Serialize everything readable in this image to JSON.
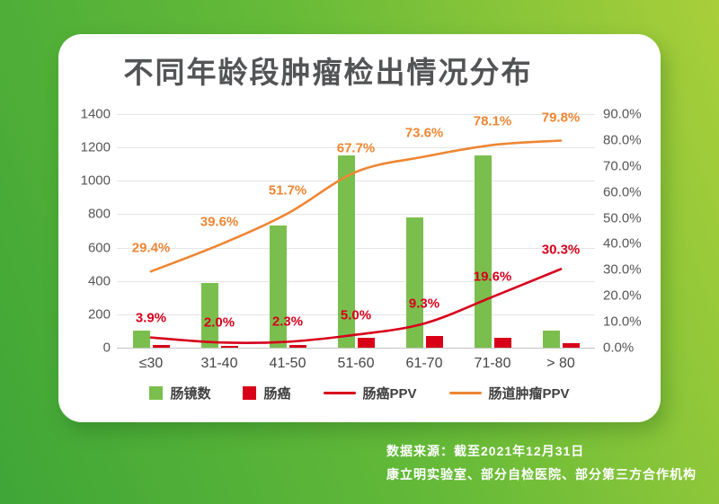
{
  "title": "不同年龄段肿瘤检出情况分布",
  "source": {
    "line1": "数据来源：截至2021年12月31日",
    "line2": "康立明实验室、部分自检医院、部分第三方合作机构"
  },
  "colors": {
    "green_bar": "#7abf4e",
    "red_bar": "#d80018",
    "red_line": "#d7001c",
    "orange_line": "#ee8633",
    "title_text": "#535456",
    "axis_text": "#565656",
    "background_light": "#a9cf3a",
    "background_dark": "#3fa637",
    "card": "#ffffff"
  },
  "chart_data": {
    "type": "bar",
    "subtype": "combo-bar-line-dual-axis",
    "title": "不同年龄段肿瘤检出情况分布",
    "categories": [
      "≤30",
      "31-40",
      "41-50",
      "51-60",
      "61-70",
      "71-80",
      "> 80"
    ],
    "series": [
      {
        "name": "肠镜数",
        "type": "bar",
        "axis": "left",
        "color": "#7abf4e",
        "values": [
          100,
          390,
          730,
          1150,
          780,
          1155,
          105
        ]
      },
      {
        "name": "肠癌",
        "type": "bar",
        "axis": "left",
        "color": "#d80018",
        "values": [
          18,
          12,
          15,
          60,
          70,
          62,
          28
        ]
      },
      {
        "name": "肠癌PPV",
        "type": "line",
        "axis": "right",
        "color": "#d7001c",
        "values": [
          3.9,
          2.0,
          2.3,
          5.0,
          9.3,
          19.6,
          30.3
        ],
        "labels": [
          "3.9%",
          "2.0%",
          "2.3%",
          "5.0%",
          "9.3%",
          "19.6%",
          "30.3%"
        ]
      },
      {
        "name": "肠道肿瘤PPV",
        "type": "line",
        "axis": "right",
        "color": "#ee8633",
        "values": [
          29.4,
          39.6,
          51.7,
          67.7,
          73.6,
          78.1,
          79.8
        ],
        "labels": [
          "29.4%",
          "39.6%",
          "51.7%",
          "67.7%",
          "73.6%",
          "78.1%",
          "79.8%"
        ]
      }
    ],
    "left_axis": {
      "min": 0,
      "max": 1400,
      "step": 200,
      "ticks": [
        "0",
        "200",
        "400",
        "600",
        "800",
        "1000",
        "1200",
        "1400"
      ]
    },
    "right_axis": {
      "min": 0,
      "max": 90,
      "step": 10,
      "ticks": [
        "0.0%",
        "10.0%",
        "20.0%",
        "30.0%",
        "40.0%",
        "50.0%",
        "60.0%",
        "70.0%",
        "80.0%",
        "90.0%"
      ]
    },
    "grid": true,
    "legend_position": "bottom",
    "legend": [
      {
        "label": "肠镜数",
        "marker": "square",
        "color": "#7abf4e"
      },
      {
        "label": "肠癌",
        "marker": "square",
        "color": "#d80018"
      },
      {
        "label": "肠癌PPV",
        "marker": "line",
        "color": "#d7001c"
      },
      {
        "label": "肠道肿瘤PPV",
        "marker": "line",
        "color": "#ee8633"
      }
    ]
  }
}
